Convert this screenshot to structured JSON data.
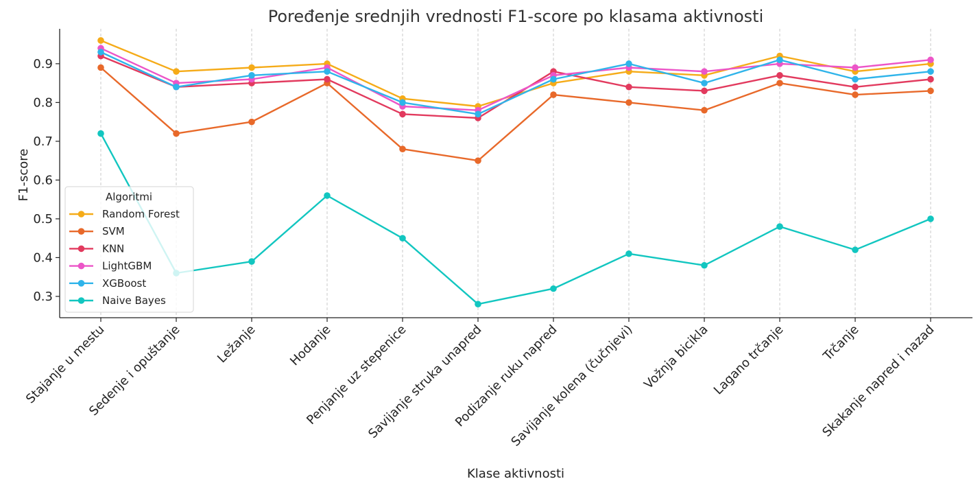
{
  "chart_data": {
    "type": "line",
    "title": "Poređenje srednjih vrednosti F1-score po klasama aktivnosti",
    "xlabel": "Klase aktivnosti",
    "ylabel": "F1-score",
    "ylim": [
      0.245,
      0.99
    ],
    "yticks": [
      0.3,
      0.4,
      0.5,
      0.6,
      0.7,
      0.8,
      0.9
    ],
    "grid": "vertical dashed",
    "legend": {
      "title": "Algoritmi",
      "placement": "center-left"
    },
    "categories": [
      "Stajanje u mestu",
      "Sedenje i opuštanje",
      "Ležanje",
      "Hodanje",
      "Penjanje uz stepenice",
      "Savijanje struka unapred",
      "Podizanje ruku napred",
      "Savijanje kolena (čučnjevi)",
      "Vožnja bicikla",
      "Lagano trčanje",
      "Trčanje",
      "Skakanje napred i nazad"
    ],
    "series": [
      {
        "name": "Random Forest",
        "color": "#F5AB18",
        "values": [
          0.96,
          0.88,
          0.89,
          0.9,
          0.81,
          0.79,
          0.85,
          0.88,
          0.87,
          0.92,
          0.88,
          0.9
        ]
      },
      {
        "name": "SVM",
        "color": "#E8692A",
        "values": [
          0.89,
          0.72,
          0.75,
          0.85,
          0.68,
          0.65,
          0.82,
          0.8,
          0.78,
          0.85,
          0.82,
          0.83
        ]
      },
      {
        "name": "KNN",
        "color": "#E23A5E",
        "values": [
          0.92,
          0.84,
          0.85,
          0.86,
          0.77,
          0.76,
          0.88,
          0.84,
          0.83,
          0.87,
          0.84,
          0.86
        ]
      },
      {
        "name": "LightGBM",
        "color": "#EC55C8",
        "values": [
          0.94,
          0.85,
          0.86,
          0.89,
          0.79,
          0.78,
          0.87,
          0.89,
          0.88,
          0.9,
          0.89,
          0.91
        ]
      },
      {
        "name": "XGBoost",
        "color": "#2FB4EA",
        "values": [
          0.93,
          0.84,
          0.87,
          0.88,
          0.8,
          0.77,
          0.86,
          0.9,
          0.85,
          0.91,
          0.86,
          0.88
        ]
      },
      {
        "name": "Naive Bayes",
        "color": "#12C6C0",
        "values": [
          0.72,
          0.36,
          0.39,
          0.56,
          0.45,
          0.28,
          0.32,
          0.41,
          0.38,
          0.48,
          0.42,
          0.5
        ]
      }
    ]
  }
}
